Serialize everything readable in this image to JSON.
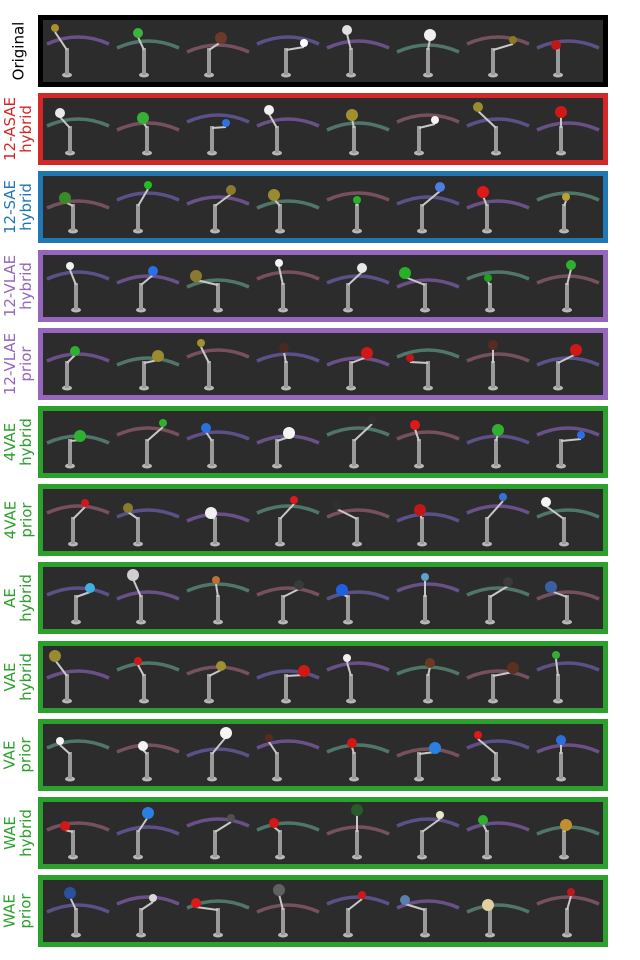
{
  "rows": [
    {
      "name": "original",
      "line1": "Original",
      "line2": "",
      "label_color": "#000000",
      "border": "#000000"
    },
    {
      "name": "12-asae-hybrid",
      "line1": "12-ASAE",
      "line2": "hybrid",
      "label_color": "#d62728",
      "border": "#d62728"
    },
    {
      "name": "12-sae-hybrid",
      "line1": "12-SAE",
      "line2": "hybrid",
      "label_color": "#1f77b4",
      "border": "#1f77b4"
    },
    {
      "name": "12-vlae-hybrid",
      "line1": "12-VLAE",
      "line2": "hybrid",
      "label_color": "#9467bd",
      "border": "#9467bd"
    },
    {
      "name": "12-vlae-prior",
      "line1": "12-VLAE",
      "line2": "prior",
      "label_color": "#9467bd",
      "border": "#9467bd"
    },
    {
      "name": "4vae-hybrid",
      "line1": "4VAE",
      "line2": "hybrid",
      "label_color": "#2ca02c",
      "border": "#2ca02c"
    },
    {
      "name": "4vae-prior",
      "line1": "4VAE",
      "line2": "prior",
      "label_color": "#2ca02c",
      "border": "#2ca02c"
    },
    {
      "name": "ae-hybrid",
      "line1": "AE",
      "line2": "hybrid",
      "label_color": "#2ca02c",
      "border": "#2ca02c"
    },
    {
      "name": "vae-hybrid",
      "line1": "VAE",
      "line2": "hybrid",
      "label_color": "#2ca02c",
      "border": "#2ca02c"
    },
    {
      "name": "vae-prior",
      "line1": "VAE",
      "line2": "prior",
      "label_color": "#2ca02c",
      "border": "#2ca02c"
    },
    {
      "name": "wae-hybrid",
      "line1": "WAE",
      "line2": "hybrid",
      "label_color": "#2ca02c",
      "border": "#2ca02c"
    },
    {
      "name": "wae-prior",
      "line1": "WAE",
      "line2": "prior",
      "label_color": "#2ca02c",
      "border": "#2ca02c"
    }
  ],
  "object_colors": [
    [
      "#a8902a",
      "#3cb43c",
      "#6b3a2a",
      "#ffffff",
      "#e0e0e0",
      "#f0f0f0",
      "#8a7a20",
      "#c01818"
    ],
    [
      "#e8e8e8",
      "#38b038",
      "#3070e0",
      "#f0f0f0",
      "#a09030",
      "#f4f4f4",
      "#9a8a30",
      "#d01818"
    ],
    [
      "#3a8a2a",
      "#20c020",
      "#8a7a30",
      "#9a8a30",
      "#28b028",
      "#4a80e0",
      "#e01818",
      "#c0a030"
    ],
    [
      "#f0f0f0",
      "#2a70e8",
      "#8a7a30",
      "#f4f4f4",
      "#e8e8e8",
      "#28b028",
      "#20a020",
      "#30b030"
    ],
    [
      "#30b030",
      "#9a8a30",
      "#a09030",
      "#4a2a20",
      "#d01818",
      "#c01818",
      "#5a2a20",
      "#d01818"
    ],
    [
      "#30b030",
      "#30b030",
      "#2a70e0",
      "#f4f4f4",
      "#303030",
      "#e01818",
      "#30b030",
      "#2a70e0"
    ],
    [
      "#d01818",
      "#8a7a30",
      "#f0f0f0",
      "#e01818",
      "#303030",
      "#c01818",
      "#3a70d0",
      "#f4f4f4"
    ],
    [
      "#40b0e0",
      "#d0d0d0",
      "#c07030",
      "#3a3a3a",
      "#2060e0",
      "#60a0d0",
      "#3a3a3a",
      "#3a60a0"
    ],
    [
      "#9a8a30",
      "#d01818",
      "#a09030",
      "#d01818",
      "#f0f0f0",
      "#6a3a20",
      "#5a3020",
      "#30b030"
    ],
    [
      "#f4f4f4",
      "#f4f4f4",
      "#f4f4f4",
      "#5a2a20",
      "#d01818",
      "#2a80e0",
      "#e01818",
      "#2a70e0"
    ],
    [
      "#d01818",
      "#2a80e0",
      "#505050",
      "#d01818",
      "#2a5a2a",
      "#e8e8c8",
      "#30b030",
      "#c09030"
    ],
    [
      "#2a50a0",
      "#d8d8d8",
      "#e01818",
      "#606060",
      "#d01818",
      "#5a80b0",
      "#e0d0a0",
      "#c01818"
    ]
  ]
}
